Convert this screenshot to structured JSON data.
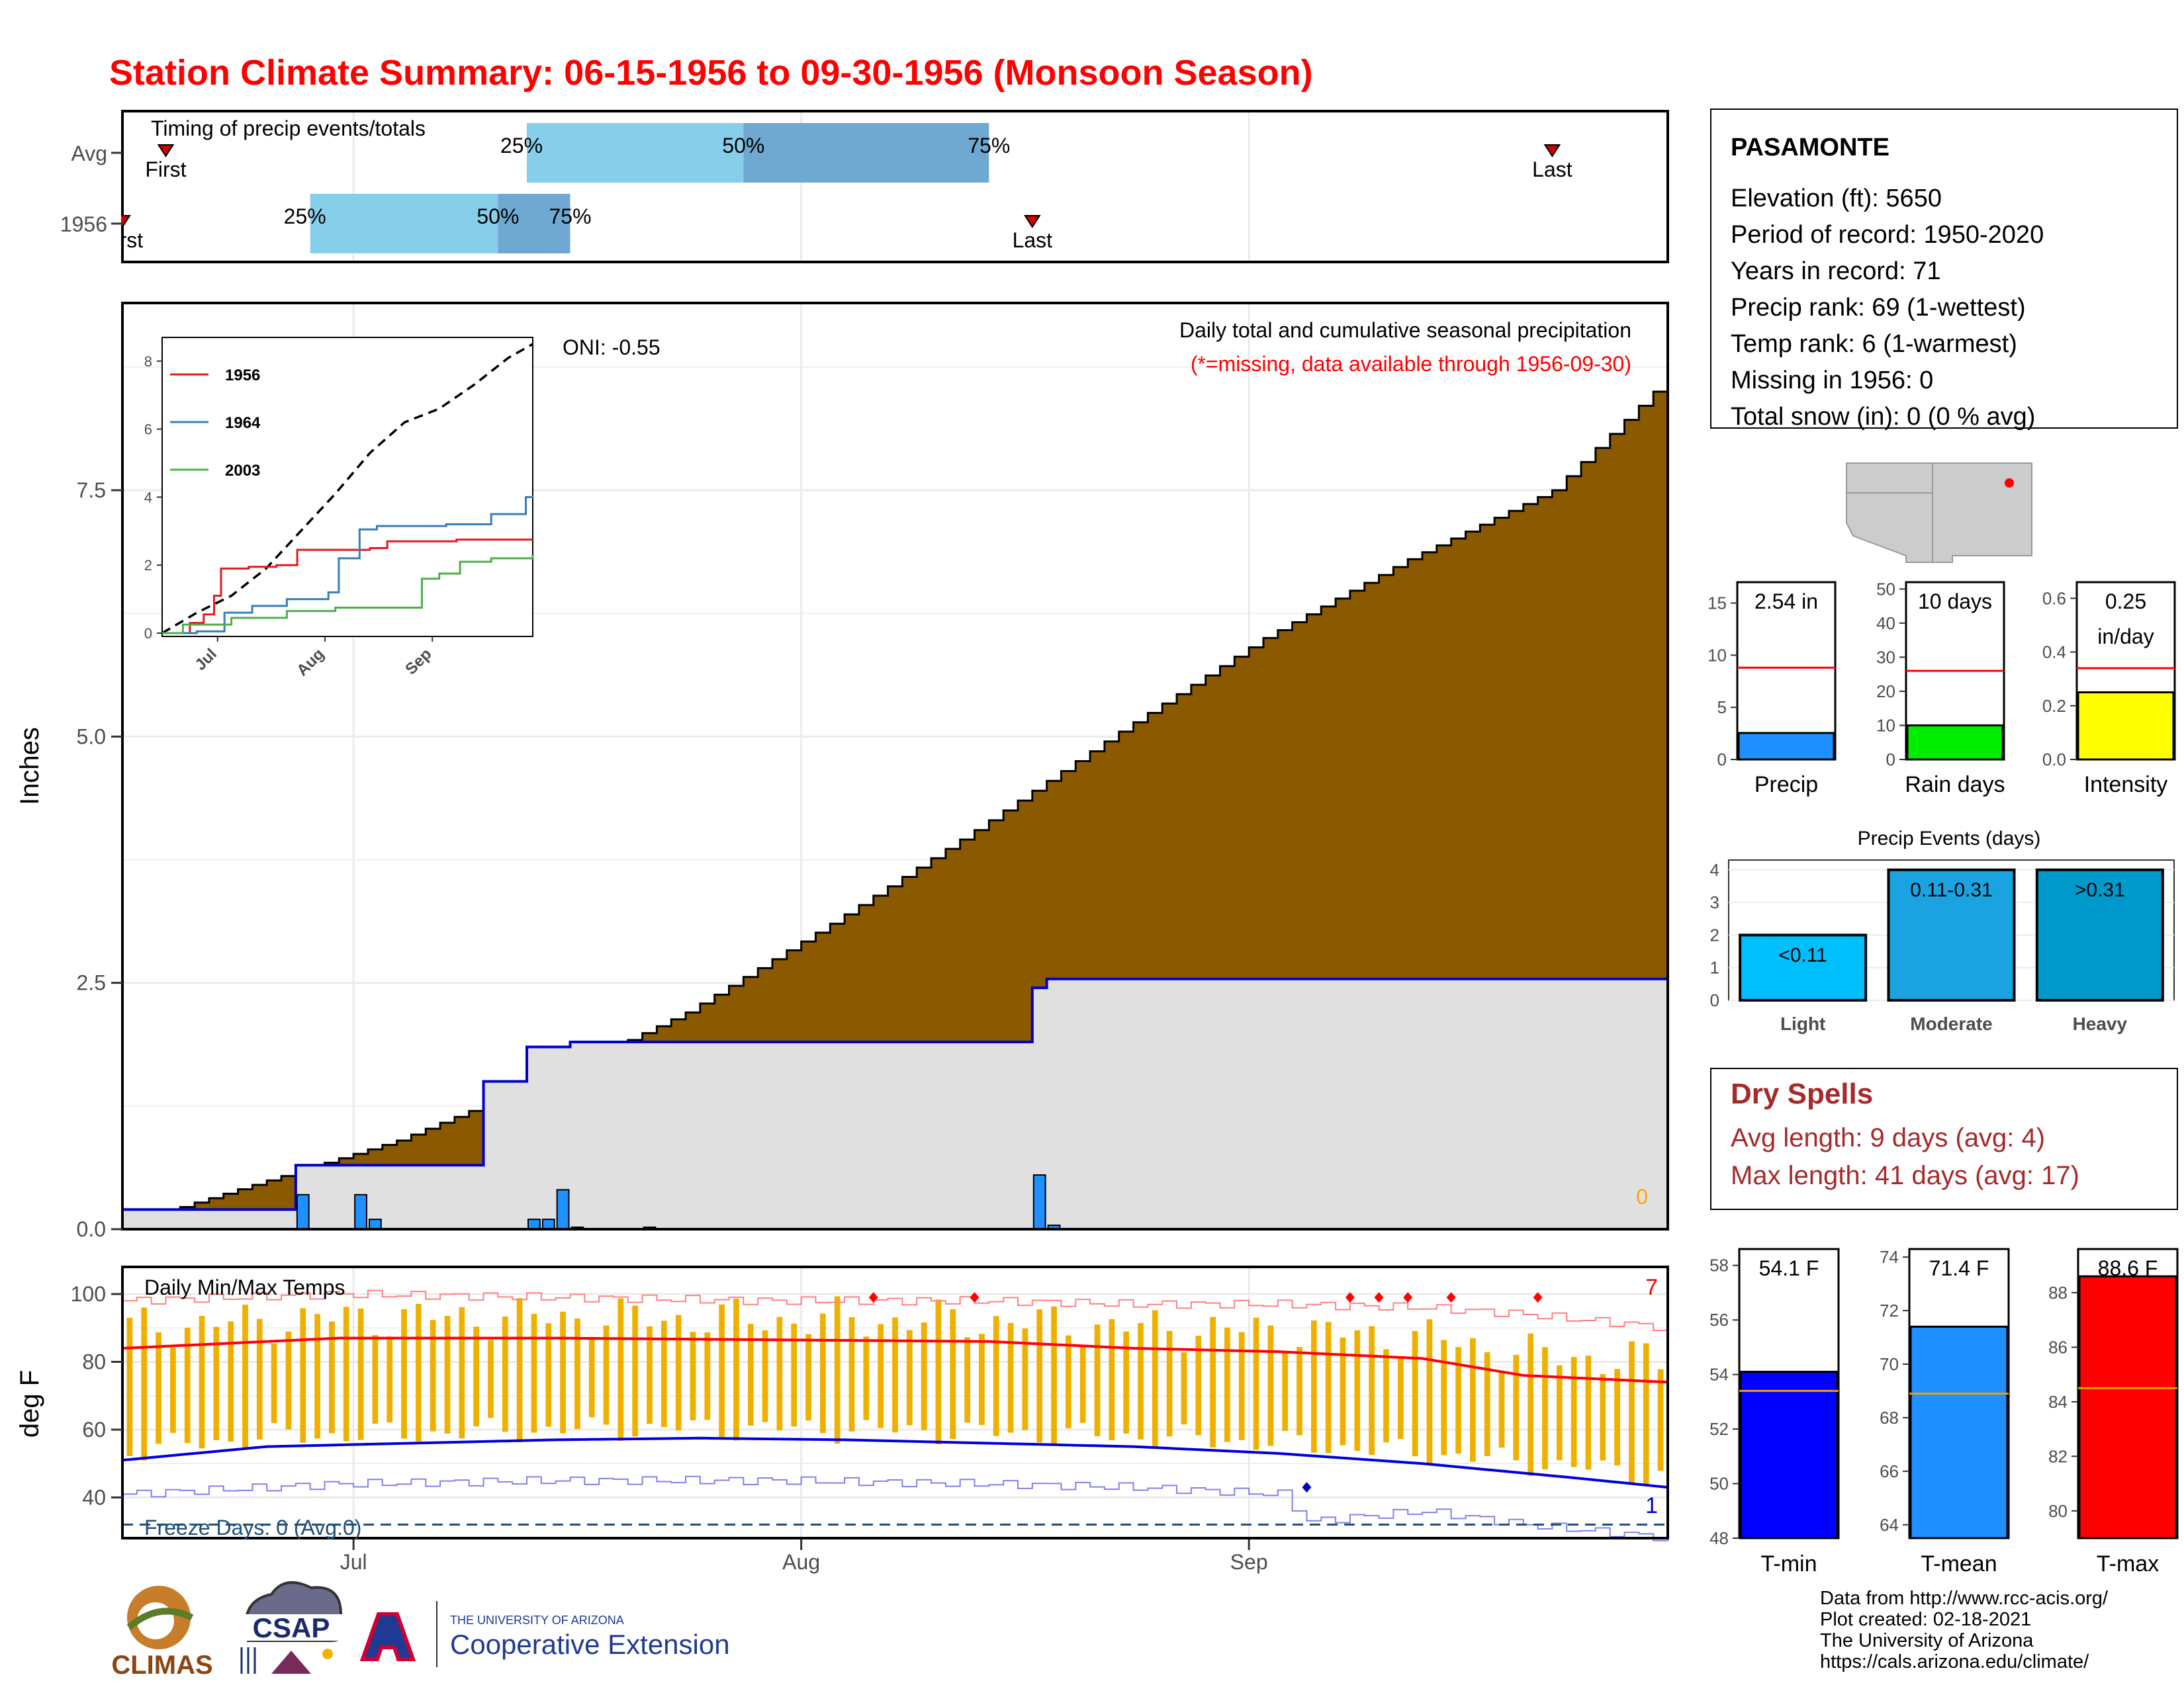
{
  "title": "Station Climate Summary: 06-15-1956 to 09-30-1956 (Monsoon Season)",
  "colors": {
    "title": "#ff0000",
    "cum_fill": "#8b5a00",
    "avg_fill": "#e0e0e0",
    "avg_line": "#0000cc",
    "daily_bar": "#1e90ff",
    "q_light": "#87ceeb",
    "q_dark": "#6fa8d0",
    "temp_bar": "#f0b000",
    "tmax_line": "#ff0000",
    "tmin_line": "#0000dd",
    "dry_spell": "#a52a2a",
    "freeze": "#1f4e79"
  },
  "timing": {
    "label": "Timing of precip events/totals",
    "rows": [
      {
        "label": "Avg",
        "first": "First",
        "last": "Last",
        "q25": "25%",
        "q50": "50%",
        "q75": "75%",
        "first_date": "1956-06-18",
        "q25_date": "1956-07-13",
        "q50_date": "1956-07-28",
        "q75_date": "1956-08-14",
        "last_date": "1956-09-22"
      },
      {
        "label": "1956",
        "first": "First",
        "last": "Last",
        "q25": "25%",
        "q50": "50%",
        "q75": "75%",
        "first_date": "1956-06-15",
        "q25_date": "1956-06-28",
        "q50_date": "1956-07-11",
        "q75_date": "1956-07-16",
        "last_date": "1956-08-17"
      }
    ]
  },
  "main_chart": {
    "ylabel": "Inches",
    "yticks": [
      "0.0",
      "2.5",
      "5.0",
      "7.5"
    ],
    "xticks": [
      "Jul",
      "Aug",
      "Sep"
    ],
    "oni": "ONI: -0.55",
    "annotation1": "Daily total and cumulative seasonal precipitation",
    "annotation2": "(*=missing, data available through 1956-09-30)",
    "missing_count": "0"
  },
  "inset": {
    "yticks": [
      "0",
      "2",
      "4",
      "6",
      "8"
    ],
    "xticks": [
      "Jul",
      "Aug",
      "Sep"
    ],
    "legend": [
      "1956",
      "1964",
      "2003"
    ]
  },
  "station": {
    "name": "PASAMONTE",
    "lines": [
      "Elevation (ft): 5650",
      "Period of record: 1950-2020",
      "Years in record: 71",
      "Precip rank: 69 (1-wettest)",
      "Temp rank: 6 (1-warmest)",
      "Missing in 1956: 0",
      "Total snow (in): 0 (0 % avg)"
    ]
  },
  "small_bars": [
    {
      "label": "Precip",
      "value_text": "2.54 in",
      "value": 2.54,
      "avg": 8.8,
      "ymax": 17,
      "ticks": [
        "0",
        "5",
        "10",
        "15"
      ],
      "color": "#1e90ff"
    },
    {
      "label": "Rain days",
      "value_text": "10 days",
      "value": 10,
      "avg": 26,
      "ymax": 52,
      "ticks": [
        "0",
        "10",
        "20",
        "30",
        "40",
        "50"
      ],
      "color": "#00ee00"
    },
    {
      "label": "Intensity",
      "value_text": "0.25",
      "value_text2": "in/day",
      "value": 0.25,
      "avg": 0.34,
      "ymax": 0.66,
      "ticks": [
        "0.0",
        "0.2",
        "0.4",
        "0.6"
      ],
      "color": "#ffff00"
    }
  ],
  "precip_events": {
    "title": "Precip Events (days)",
    "categories": [
      "Light",
      "Moderate",
      "Heavy"
    ],
    "bar_labels": [
      "<0.11",
      "0.11-0.31",
      ">0.31"
    ],
    "values": [
      2,
      4,
      4
    ],
    "yticks": [
      "0",
      "1",
      "2",
      "3",
      "4"
    ],
    "colors": [
      "#00bfff",
      "#1aa3e0",
      "#0099cc"
    ]
  },
  "dry_spells": {
    "title": "Dry Spells",
    "avg_length": "Avg length: 9 days (avg: 4)",
    "max_length": "Max length: 41 days (avg: 17)"
  },
  "temp_chart": {
    "title": "Daily Min/Max Temps",
    "ylabel": "deg F",
    "yticks": [
      "40",
      "60",
      "80",
      "100"
    ],
    "xticks": [
      "Jul",
      "Aug",
      "Sep"
    ],
    "freeze_text": "Freeze Days: 0 (Avg:0)",
    "record_high_count": "7",
    "record_low_count": "1"
  },
  "temp_bars": [
    {
      "label": "T-min",
      "value_text": "54.1 F",
      "value": 54.1,
      "avg": 53.4,
      "ymin": 48,
      "ymax": 58.6,
      "ticks": [
        "48",
        "50",
        "52",
        "54",
        "56",
        "58"
      ],
      "color": "#0000ff"
    },
    {
      "label": "T-mean",
      "value_text": "71.4 F",
      "value": 71.4,
      "avg": 68.9,
      "ymin": 63.5,
      "ymax": 74.3,
      "ticks": [
        "64",
        "66",
        "68",
        "70",
        "72",
        "74"
      ],
      "color": "#1e90ff"
    },
    {
      "label": "T-max",
      "value_text": "88.6 F",
      "value": 88.6,
      "avg": 84.5,
      "ymin": 79,
      "ymax": 89.6,
      "ticks": [
        "80",
        "82",
        "84",
        "86",
        "88"
      ],
      "color": "#ff0000"
    }
  ],
  "footer": {
    "credits": [
      "Data from http://www.rcc-acis.org/",
      "Plot created: 02-18-2021",
      "The University of Arizona",
      "https://cals.arizona.edu/climate/"
    ],
    "climas": "CLIMAS",
    "csap": "CSAP",
    "ua_small": "THE UNIVERSITY OF ARIZONA",
    "ua_big": "Cooperative Extension"
  },
  "chart_data": [
    {
      "type": "area",
      "title": "Daily total and cumulative seasonal precipitation",
      "ylabel": "Inches",
      "ylim": [
        0,
        9.4
      ],
      "x_range": [
        "1956-06-15",
        "1956-09-30"
      ],
      "series": [
        {
          "name": "Average cumulative",
          "x_days": [
            0,
            10,
            20,
            30,
            40,
            50,
            60,
            70,
            80,
            90,
            100,
            107
          ],
          "values": [
            0.0,
            0.45,
            0.9,
            1.5,
            2.2,
            3.1,
            4.05,
            5.05,
            6.0,
            6.8,
            7.5,
            8.5
          ]
        },
        {
          "name": "1956 cumulative",
          "x_days": [
            0,
            10,
            12,
            19,
            25,
            28,
            30,
            31,
            45,
            63,
            64,
            107
          ],
          "values": [
            0.2,
            0.2,
            0.65,
            0.65,
            1.5,
            1.85,
            1.85,
            1.9,
            1.9,
            2.45,
            2.54,
            2.54
          ]
        },
        {
          "name": "1956 daily",
          "x_days": [
            12,
            16,
            17,
            28,
            29,
            30,
            31,
            36,
            63,
            64
          ],
          "values": [
            0.35,
            0.35,
            0.1,
            0.1,
            0.1,
            0.4,
            0.02,
            0.02,
            0.55,
            0.04
          ]
        }
      ]
    },
    {
      "type": "line",
      "title": "",
      "ylim": [
        0,
        9
      ],
      "xticks": [
        "Jul",
        "Aug",
        "Sep"
      ],
      "series": [
        {
          "name": "Average",
          "x_days": [
            0,
            10,
            20,
            30,
            40,
            50,
            60,
            70,
            80,
            90,
            100,
            107
          ],
          "values": [
            0,
            0.6,
            1.1,
            1.9,
            3.0,
            4.1,
            5.3,
            6.2,
            6.6,
            7.3,
            8.1,
            8.5
          ]
        },
        {
          "name": "1956",
          "x_days": [
            0,
            8,
            12,
            15,
            17,
            25,
            33,
            39,
            60,
            65,
            85,
            100,
            107
          ],
          "values": [
            0,
            0.3,
            0.55,
            1.1,
            1.9,
            1.95,
            2.0,
            2.45,
            2.5,
            2.7,
            2.75,
            2.75,
            2.75
          ]
        },
        {
          "name": "1964",
          "x_days": [
            0,
            10,
            18,
            26,
            36,
            48,
            51,
            57,
            62,
            82,
            95,
            105,
            107
          ],
          "values": [
            0,
            0.05,
            0.6,
            0.8,
            1.0,
            1.2,
            2.2,
            3.05,
            3.15,
            3.2,
            3.5,
            4.0,
            4.05
          ]
        },
        {
          "name": "2003",
          "x_days": [
            0,
            6,
            20,
            36,
            50,
            60,
            75,
            80,
            86,
            95,
            107
          ],
          "values": [
            0,
            0.25,
            0.45,
            0.65,
            0.75,
            0.75,
            1.6,
            1.75,
            2.1,
            2.2,
            2.3
          ]
        }
      ]
    },
    {
      "type": "bar",
      "title": "Precip Events (days)",
      "categories": [
        "Light",
        "Moderate",
        "Heavy"
      ],
      "values": [
        2,
        4,
        4
      ],
      "ylim": [
        0,
        4.3
      ]
    },
    {
      "type": "bar",
      "categories": [
        "Precip",
        "Rain days",
        "Intensity"
      ],
      "series": [
        {
          "name": "1956",
          "values": [
            2.54,
            10,
            0.25
          ]
        }
      ]
    },
    {
      "type": "bar",
      "categories": [
        "T-min",
        "T-mean",
        "T-max"
      ],
      "series": [
        {
          "name": "1956",
          "values": [
            54.1,
            71.4,
            88.6
          ]
        }
      ]
    },
    {
      "type": "line",
      "title": "Daily Min/Max Temps",
      "ylabel": "deg F",
      "ylim": [
        28,
        108
      ],
      "freeze_line": 32,
      "series": [
        {
          "name": "Avg Tmax",
          "x_days": [
            0,
            15,
            30,
            45,
            60,
            70,
            80,
            90,
            97,
            107
          ],
          "values": [
            84,
            87,
            87,
            86.5,
            86,
            84,
            83,
            81,
            76,
            74
          ]
        },
        {
          "name": "Avg Tmin",
          "x_days": [
            0,
            10,
            20,
            30,
            40,
            50,
            60,
            70,
            80,
            90,
            100,
            107
          ],
          "values": [
            51,
            55,
            56,
            57,
            57.5,
            57,
            56,
            55,
            53,
            50,
            46,
            43
          ]
        },
        {
          "name": "Record high",
          "x_days": [
            0,
            15,
            30,
            45,
            60,
            70,
            80,
            90,
            97,
            107
          ],
          "values": [
            98,
            100,
            99,
            98,
            98,
            97,
            97,
            96,
            94,
            90
          ]
        },
        {
          "name": "Record low",
          "x_days": [
            0,
            15,
            30,
            45,
            60,
            70,
            80,
            82,
            90,
            97,
            107
          ],
          "values": [
            41,
            44,
            45,
            45,
            44,
            43,
            41,
            33,
            36,
            32,
            28
          ]
        }
      ]
    }
  ]
}
